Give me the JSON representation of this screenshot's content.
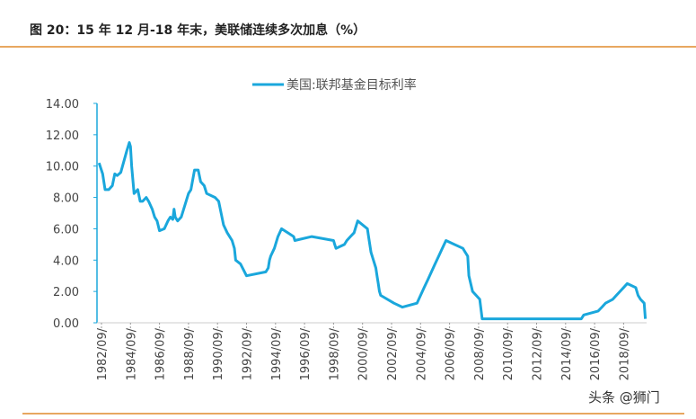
{
  "title": "图 20：15 年 12 月-18 年末，美联储连续多次加息（%）",
  "watermark": "头条 @狮门",
  "accent_color": "#e08a2c",
  "chart_data": {
    "type": "line",
    "title": "",
    "xlabel": "",
    "ylabel": "",
    "ylim": [
      0,
      14
    ],
    "y_ticks": [
      "0.00",
      "2.00",
      "4.00",
      "6.00",
      "8.00",
      "10.00",
      "12.00",
      "14.00"
    ],
    "x_ticks": [
      "1982/09/",
      "1984/09/",
      "1986/09/",
      "1988/09/",
      "1990/09/",
      "1992/09/",
      "1994/09/",
      "1996/09/",
      "1998/09/",
      "2000/09/",
      "2002/09/",
      "2004/09/",
      "2006/09/",
      "2008/09/",
      "2010/09/",
      "2012/09/",
      "2014/09/",
      "2016/09/",
      "2018/09/"
    ],
    "grid": false,
    "legend_position": "top",
    "series": [
      {
        "name": "美国:联邦基金目标利率",
        "color": "#1aa7dc",
        "points": [
          [
            "1982-07",
            10.2
          ],
          [
            "1982-10",
            9.5
          ],
          [
            "1982-12",
            8.5
          ],
          [
            "1983-03",
            8.5
          ],
          [
            "1983-06",
            8.75
          ],
          [
            "1983-08",
            9.5
          ],
          [
            "1983-10",
            9.4
          ],
          [
            "1984-01",
            9.6
          ],
          [
            "1984-06",
            11.0
          ],
          [
            "1984-08",
            11.5
          ],
          [
            "1984-09",
            11.25
          ],
          [
            "1984-10",
            10.0
          ],
          [
            "1984-12",
            8.25
          ],
          [
            "1985-03",
            8.5
          ],
          [
            "1985-05",
            7.75
          ],
          [
            "1985-07",
            7.75
          ],
          [
            "1985-10",
            8.0
          ],
          [
            "1985-12",
            7.75
          ],
          [
            "1986-03",
            7.25
          ],
          [
            "1986-05",
            6.75
          ],
          [
            "1986-07",
            6.5
          ],
          [
            "1986-09",
            5.875
          ],
          [
            "1987-01",
            6.0
          ],
          [
            "1987-04",
            6.5
          ],
          [
            "1987-06",
            6.75
          ],
          [
            "1987-08",
            6.6
          ],
          [
            "1987-09",
            7.25
          ],
          [
            "1987-10",
            6.75
          ],
          [
            "1987-12",
            6.5
          ],
          [
            "1988-03",
            6.75
          ],
          [
            "1988-07",
            7.75
          ],
          [
            "1988-09",
            8.25
          ],
          [
            "1988-11",
            8.5
          ],
          [
            "1989-02",
            9.75
          ],
          [
            "1989-05",
            9.75
          ],
          [
            "1989-07",
            9.0
          ],
          [
            "1989-10",
            8.75
          ],
          [
            "1989-12",
            8.25
          ],
          [
            "1990-07",
            8.0
          ],
          [
            "1990-10",
            7.75
          ],
          [
            "1990-12",
            7.0
          ],
          [
            "1991-02",
            6.25
          ],
          [
            "1991-05",
            5.75
          ],
          [
            "1991-09",
            5.25
          ],
          [
            "1991-11",
            4.75
          ],
          [
            "1991-12",
            4.0
          ],
          [
            "1992-04",
            3.75
          ],
          [
            "1992-09",
            3.0
          ],
          [
            "1994-01",
            3.25
          ],
          [
            "1994-03",
            3.5
          ],
          [
            "1994-04",
            4.0
          ],
          [
            "1994-05",
            4.25
          ],
          [
            "1994-08",
            4.75
          ],
          [
            "1994-11",
            5.5
          ],
          [
            "1995-02",
            6.0
          ],
          [
            "1995-07",
            5.75
          ],
          [
            "1995-12",
            5.5
          ],
          [
            "1996-01",
            5.25
          ],
          [
            "1997-03",
            5.5
          ],
          [
            "1998-09",
            5.25
          ],
          [
            "1998-10",
            5.0
          ],
          [
            "1998-11",
            4.75
          ],
          [
            "1999-06",
            5.0
          ],
          [
            "1999-08",
            5.25
          ],
          [
            "1999-11",
            5.5
          ],
          [
            "2000-02",
            5.75
          ],
          [
            "2000-03",
            6.0
          ],
          [
            "2000-05",
            6.5
          ],
          [
            "2001-01",
            6.0
          ],
          [
            "2001-02",
            5.5
          ],
          [
            "2001-04",
            4.5
          ],
          [
            "2001-06",
            4.0
          ],
          [
            "2001-08",
            3.5
          ],
          [
            "2001-09",
            3.0
          ],
          [
            "2001-10",
            2.5
          ],
          [
            "2001-11",
            2.0
          ],
          [
            "2001-12",
            1.75
          ],
          [
            "2002-11",
            1.25
          ],
          [
            "2003-06",
            1.0
          ],
          [
            "2004-06",
            1.25
          ],
          [
            "2004-09",
            1.75
          ],
          [
            "2004-12",
            2.25
          ],
          [
            "2005-03",
            2.75
          ],
          [
            "2005-06",
            3.25
          ],
          [
            "2005-09",
            3.75
          ],
          [
            "2005-12",
            4.25
          ],
          [
            "2006-03",
            4.75
          ],
          [
            "2006-06",
            5.25
          ],
          [
            "2007-08",
            4.75
          ],
          [
            "2007-10",
            4.5
          ],
          [
            "2007-12",
            4.25
          ],
          [
            "2008-01",
            3.0
          ],
          [
            "2008-04",
            2.0
          ],
          [
            "2008-10",
            1.5
          ],
          [
            "2008-12",
            0.25
          ],
          [
            "2015-10",
            0.25
          ],
          [
            "2015-12",
            0.5
          ],
          [
            "2016-12",
            0.75
          ],
          [
            "2017-03",
            1.0
          ],
          [
            "2017-06",
            1.25
          ],
          [
            "2017-12",
            1.5
          ],
          [
            "2018-03",
            1.75
          ],
          [
            "2018-06",
            2.0
          ],
          [
            "2018-09",
            2.25
          ],
          [
            "2018-12",
            2.5
          ],
          [
            "2019-07",
            2.25
          ],
          [
            "2019-09",
            1.75
          ],
          [
            "2019-11",
            1.5
          ],
          [
            "2020-02",
            1.25
          ],
          [
            "2020-03",
            0.25
          ]
        ]
      }
    ]
  }
}
